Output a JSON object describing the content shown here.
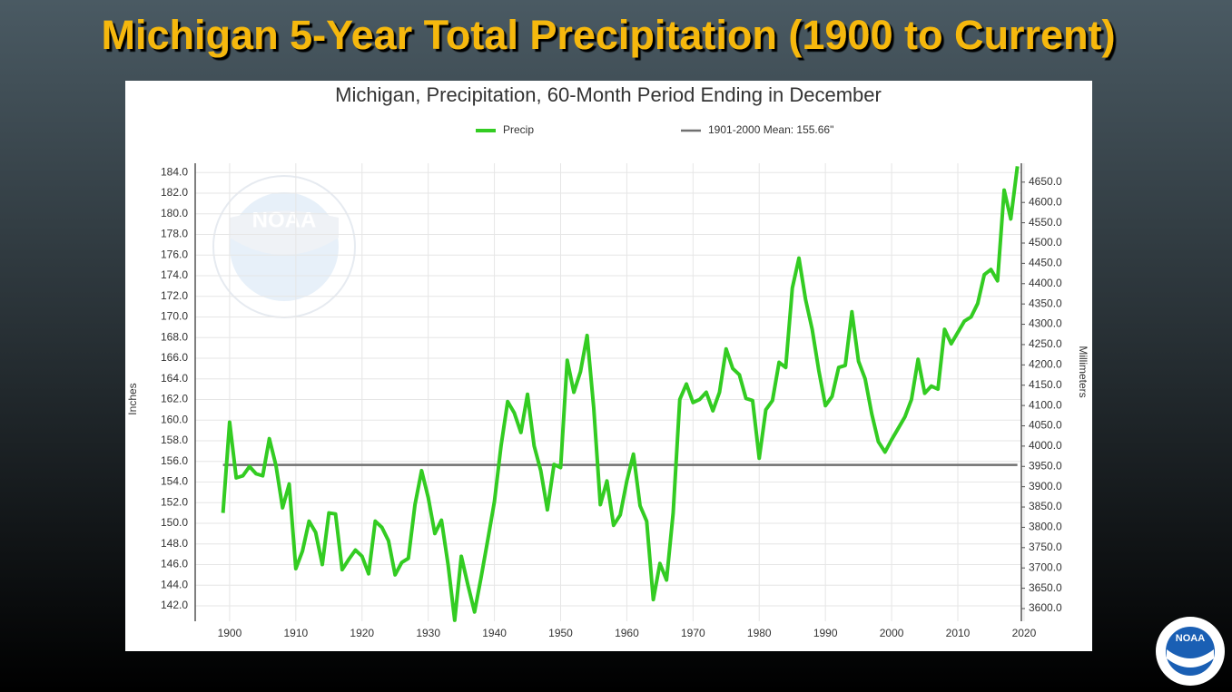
{
  "slide_title": "Michigan 5-Year Total Precipitation (1900 to Current)",
  "logo_text": "NOAA",
  "chart_data": {
    "type": "line",
    "title": "Michigan, Precipitation, 60-Month Period Ending in December",
    "ylabel": "Inches",
    "y2label": "Millimeters",
    "x": [
      1899,
      1900,
      1901,
      1902,
      1903,
      1904,
      1905,
      1906,
      1907,
      1908,
      1909,
      1910,
      1911,
      1912,
      1913,
      1914,
      1915,
      1916,
      1917,
      1918,
      1919,
      1920,
      1921,
      1922,
      1923,
      1924,
      1925,
      1926,
      1927,
      1928,
      1929,
      1930,
      1931,
      1932,
      1933,
      1934,
      1935,
      1936,
      1937,
      1938,
      1939,
      1940,
      1941,
      1942,
      1943,
      1944,
      1945,
      1946,
      1947,
      1948,
      1949,
      1950,
      1951,
      1952,
      1953,
      1954,
      1955,
      1956,
      1957,
      1958,
      1959,
      1960,
      1961,
      1962,
      1963,
      1964,
      1965,
      1966,
      1967,
      1968,
      1969,
      1970,
      1971,
      1972,
      1973,
      1974,
      1975,
      1976,
      1977,
      1978,
      1979,
      1980,
      1981,
      1982,
      1983,
      1984,
      1985,
      1986,
      1987,
      1988,
      1989,
      1990,
      1991,
      1992,
      1993,
      1994,
      1995,
      1996,
      1997,
      1998,
      1999,
      2000,
      2001,
      2002,
      2003,
      2004,
      2005,
      2006,
      2007,
      2008,
      2009,
      2010,
      2011,
      2012,
      2013,
      2014,
      2015,
      2016,
      2017,
      2018,
      2019
    ],
    "series": [
      {
        "name": "Precip",
        "color": "#33cc22",
        "values": [
          151.0,
          159.8,
          154.4,
          154.6,
          155.5,
          154.8,
          154.6,
          158.2,
          155.6,
          151.5,
          153.8,
          145.6,
          147.3,
          150.2,
          149.1,
          146.0,
          151.0,
          150.9,
          145.5,
          146.5,
          147.4,
          146.8,
          145.1,
          150.2,
          149.6,
          148.3,
          145.0,
          146.2,
          146.6,
          151.8,
          155.1,
          152.5,
          149.0,
          150.3,
          146.0,
          140.6,
          146.8,
          144.0,
          141.4,
          144.8,
          148.4,
          152.1,
          157.5,
          161.8,
          160.7,
          158.8,
          162.5,
          157.5,
          155.1,
          151.3,
          155.7,
          155.4,
          165.8,
          162.7,
          164.7,
          168.2,
          161.2,
          151.8,
          154.1,
          149.8,
          150.8,
          154.1,
          156.7,
          151.7,
          150.2,
          142.6,
          146.1,
          144.5,
          151.0,
          162.0,
          163.5,
          161.7,
          162.0,
          162.7,
          160.9,
          162.7,
          166.9,
          165.0,
          164.4,
          162.1,
          161.9,
          156.3,
          161.0,
          161.9,
          165.6,
          165.1,
          172.8,
          175.7,
          171.7,
          168.8,
          164.8,
          161.4,
          162.3,
          165.1,
          165.3,
          170.5,
          165.7,
          164.0,
          160.6,
          157.9,
          156.9,
          158.1,
          159.2,
          160.3,
          162.0,
          165.9,
          162.6,
          163.3,
          163.0,
          168.8,
          167.4,
          168.5,
          169.6,
          170.0,
          171.3,
          174.1,
          174.6,
          173.5,
          182.3,
          179.5,
          184.6
        ]
      }
    ],
    "reference_lines": [
      {
        "name": "1901-2000 Mean: 155.66\"",
        "value": 155.66,
        "color": "#707070"
      }
    ],
    "xlim": [
      1894.8,
      2019.6
    ],
    "xticks": [
      1900,
      1910,
      1920,
      1930,
      1940,
      1950,
      1960,
      1970,
      1980,
      1990,
      2000,
      2010,
      2020
    ],
    "ylim": [
      140.5,
      184.9
    ],
    "yticks": [
      {
        "value": 142,
        "label": "142.0"
      },
      {
        "value": 144,
        "label": "144.0"
      },
      {
        "value": 146,
        "label": "146.0"
      },
      {
        "value": 148,
        "label": "148.0"
      },
      {
        "value": 150,
        "label": "150.0"
      },
      {
        "value": 152,
        "label": "152.0"
      },
      {
        "value": 154,
        "label": "154.0"
      },
      {
        "value": 156,
        "label": "156.0"
      },
      {
        "value": 158,
        "label": "158.0"
      },
      {
        "value": 160,
        "label": "160.0"
      },
      {
        "value": 162,
        "label": "162.0"
      },
      {
        "value": 164,
        "label": "164.0"
      },
      {
        "value": 166,
        "label": "166.0"
      },
      {
        "value": 168,
        "label": "168.0"
      },
      {
        "value": 170,
        "label": "170.0"
      },
      {
        "value": 172,
        "label": "172.0"
      },
      {
        "value": 174,
        "label": "174.0"
      },
      {
        "value": 176,
        "label": "176.0"
      },
      {
        "value": 178,
        "label": "178.0"
      },
      {
        "value": 180,
        "label": "180.0"
      },
      {
        "value": 182,
        "label": "182.0"
      },
      {
        "value": 184,
        "label": "184.0"
      }
    ],
    "y2lim": [
      3568.7,
      4696.5
    ],
    "y2ticks": [
      {
        "value": 3600,
        "label": "3600.0"
      },
      {
        "value": 3650,
        "label": "3650.0"
      },
      {
        "value": 3700,
        "label": "3700.0"
      },
      {
        "value": 3750,
        "label": "3750.0"
      },
      {
        "value": 3800,
        "label": "3800.0"
      },
      {
        "value": 3850,
        "label": "3850.0"
      },
      {
        "value": 3900,
        "label": "3900.0"
      },
      {
        "value": 3950,
        "label": "3950.0"
      },
      {
        "value": 4000,
        "label": "4000.0"
      },
      {
        "value": 4050,
        "label": "4050.0"
      },
      {
        "value": 4100,
        "label": "4100.0"
      },
      {
        "value": 4150,
        "label": "4150.0"
      },
      {
        "value": 4200,
        "label": "4200.0"
      },
      {
        "value": 4250,
        "label": "4250.0"
      },
      {
        "value": 4300,
        "label": "4300.0"
      },
      {
        "value": 4350,
        "label": "4350.0"
      },
      {
        "value": 4400,
        "label": "4400.0"
      },
      {
        "value": 4450,
        "label": "4450.0"
      },
      {
        "value": 4500,
        "label": "4500.0"
      },
      {
        "value": 4550,
        "label": "4550.0"
      },
      {
        "value": 4600,
        "label": "4600.0"
      },
      {
        "value": 4650,
        "label": "4650.0"
      }
    ],
    "grid": true
  }
}
